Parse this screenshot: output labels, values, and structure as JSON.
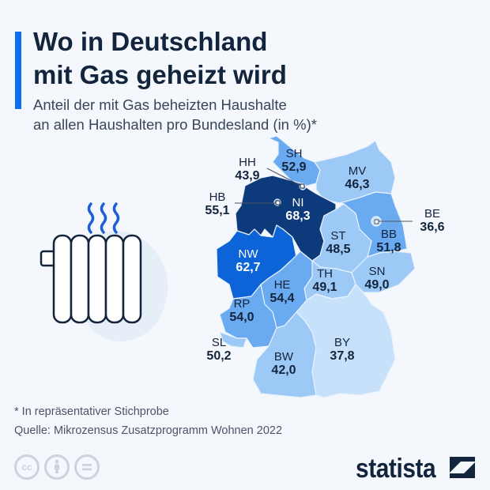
{
  "title": {
    "line1": "Wo in Deutschland",
    "line2": "mit Gas geheizt wird"
  },
  "subtitle": {
    "line1": "Anteil der mit Gas beheizten Haushalte",
    "line2": "an allen Haushalten pro Bundesland (in %)*"
  },
  "chart_data": {
    "type": "choropleth",
    "unit": "%",
    "regions": [
      {
        "code": "SH",
        "value": "52,9"
      },
      {
        "code": "HH",
        "value": "43,9"
      },
      {
        "code": "MV",
        "value": "46,3"
      },
      {
        "code": "HB",
        "value": "55,1"
      },
      {
        "code": "NI",
        "value": "68,3"
      },
      {
        "code": "BE",
        "value": "36,6"
      },
      {
        "code": "BB",
        "value": "51,8"
      },
      {
        "code": "ST",
        "value": "48,5"
      },
      {
        "code": "NW",
        "value": "62,7"
      },
      {
        "code": "SN",
        "value": "49,0"
      },
      {
        "code": "TH",
        "value": "49,1"
      },
      {
        "code": "HE",
        "value": "54,4"
      },
      {
        "code": "RP",
        "value": "54,0"
      },
      {
        "code": "SL",
        "value": "50,2"
      },
      {
        "code": "BY",
        "value": "37,8"
      },
      {
        "code": "BW",
        "value": "42,0"
      }
    ],
    "colors": {
      "max": "#0c3a7a",
      "high": "#0d63d8",
      "mid": "#6aaaf0",
      "low": "#9dc9f7",
      "min": "#c7e1fb"
    }
  },
  "footer": {
    "note": "* In repräsentativer Stichprobe",
    "source": "Quelle: Mikrozensus Zusatzprogramm Wohnen 2022",
    "cc": "cc",
    "brand": "statista"
  }
}
